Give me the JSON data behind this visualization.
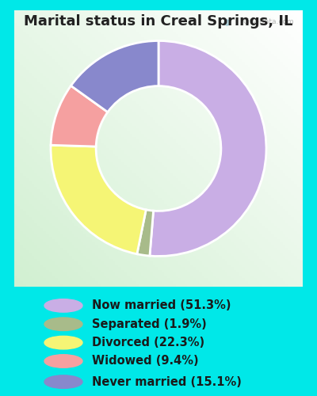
{
  "title": "Marital status in Creal Springs, IL",
  "percentages": [
    51.3,
    1.9,
    22.3,
    9.4,
    15.1
  ],
  "colors": [
    "#c9aee5",
    "#a8bb8a",
    "#f5f575",
    "#f5a0a0",
    "#8888cc"
  ],
  "legend_labels": [
    "Now married (51.3%)",
    "Separated (1.9%)",
    "Divorced (22.3%)",
    "Widowed (9.4%)",
    "Never married (15.1%)"
  ],
  "bg_legend": "#00e8e8",
  "title_fontsize": 13,
  "legend_fontsize": 10.5
}
